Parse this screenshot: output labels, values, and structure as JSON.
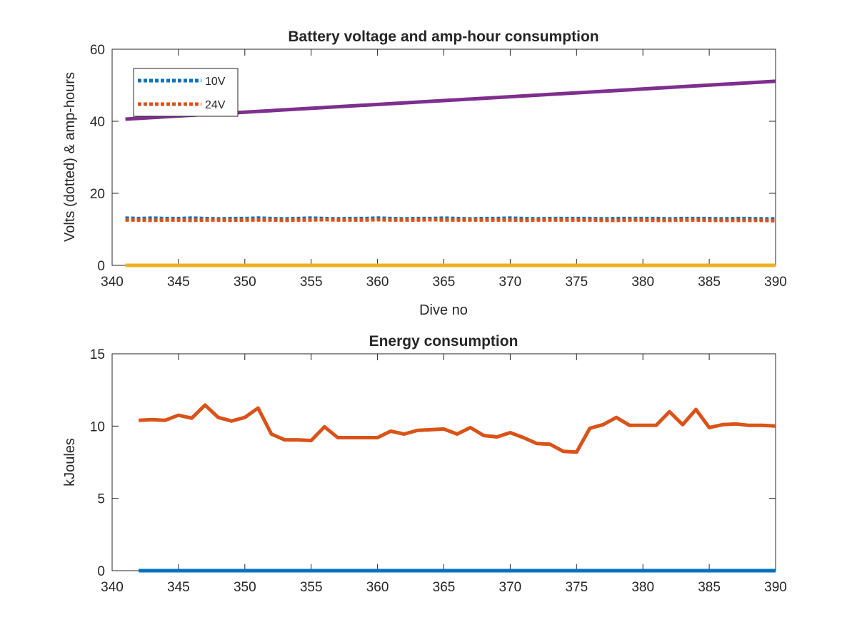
{
  "chart_data": [
    {
      "type": "line",
      "title": "Battery voltage and amp-hour consumption",
      "xlabel": "Dive no",
      "ylabel": "Volts (dotted) & amp-hours",
      "xlim": [
        340,
        390
      ],
      "ylim": [
        0,
        60
      ],
      "xticks": [
        "340",
        "345",
        "350",
        "355",
        "360",
        "365",
        "370",
        "375",
        "380",
        "385",
        "390"
      ],
      "yticks": [
        "0",
        "20",
        "40",
        "60"
      ],
      "grid": false,
      "legend_position": "top-left",
      "series": [
        {
          "name": "10V",
          "style": "dotted",
          "color": "#0072BD",
          "x": [
            341,
            342,
            343,
            344,
            345,
            346,
            347,
            348,
            349,
            350,
            351,
            352,
            353,
            354,
            355,
            356,
            357,
            358,
            359,
            360,
            361,
            362,
            363,
            364,
            365,
            366,
            367,
            368,
            369,
            370,
            371,
            372,
            373,
            374,
            375,
            376,
            377,
            378,
            379,
            380,
            381,
            382,
            383,
            384,
            385,
            386,
            387,
            388,
            389,
            390
          ],
          "values": [
            13.1,
            13.0,
            13.1,
            13.0,
            13.0,
            13.1,
            13.0,
            12.9,
            13.0,
            13.0,
            13.1,
            13.0,
            12.9,
            13.0,
            13.1,
            13.0,
            12.9,
            13.0,
            13.0,
            13.1,
            13.0,
            12.9,
            13.0,
            13.0,
            13.1,
            13.0,
            12.9,
            13.0,
            13.0,
            13.1,
            13.0,
            12.9,
            13.0,
            13.0,
            13.0,
            13.0,
            12.9,
            13.0,
            13.0,
            13.0,
            13.0,
            12.9,
            13.0,
            13.0,
            13.0,
            12.9,
            13.0,
            13.0,
            12.9,
            12.9
          ]
        },
        {
          "name": "24V",
          "style": "dotted",
          "color": "#D95319",
          "x": [
            341,
            342,
            343,
            344,
            345,
            346,
            347,
            348,
            349,
            350,
            351,
            352,
            353,
            354,
            355,
            356,
            357,
            358,
            359,
            360,
            361,
            362,
            363,
            364,
            365,
            366,
            367,
            368,
            369,
            370,
            371,
            372,
            373,
            374,
            375,
            376,
            377,
            378,
            379,
            380,
            381,
            382,
            383,
            384,
            385,
            386,
            387,
            388,
            389,
            390
          ],
          "values": [
            12.6,
            12.6,
            12.5,
            12.6,
            12.6,
            12.5,
            12.6,
            12.6,
            12.5,
            12.6,
            12.6,
            12.6,
            12.5,
            12.6,
            12.6,
            12.7,
            12.6,
            12.6,
            12.6,
            12.7,
            12.6,
            12.6,
            12.6,
            12.7,
            12.6,
            12.6,
            12.6,
            12.6,
            12.6,
            12.6,
            12.5,
            12.6,
            12.6,
            12.6,
            12.6,
            12.6,
            12.5,
            12.5,
            12.6,
            12.6,
            12.5,
            12.5,
            12.6,
            12.6,
            12.5,
            12.5,
            12.5,
            12.5,
            12.5,
            12.4
          ]
        },
        {
          "style": "solid",
          "color": "#EDB120",
          "x": [
            341,
            390
          ],
          "values": [
            0,
            0
          ]
        },
        {
          "style": "solid",
          "color": "#7E2F8E",
          "x": [
            341,
            390
          ],
          "values": [
            40.6,
            51.1
          ]
        }
      ]
    },
    {
      "type": "line",
      "title": "Energy consumption",
      "xlabel": "",
      "ylabel": "kJoules",
      "xlim": [
        340,
        390
      ],
      "ylim": [
        0,
        15
      ],
      "xticks": [
        "340",
        "345",
        "350",
        "355",
        "360",
        "365",
        "370",
        "375",
        "380",
        "385",
        "390"
      ],
      "yticks": [
        "0",
        "5",
        "10",
        "15"
      ],
      "grid": false,
      "series": [
        {
          "style": "solid",
          "color": "#0072BD",
          "x": [
            342,
            390
          ],
          "values": [
            0,
            0
          ]
        },
        {
          "style": "solid",
          "color": "#D95319",
          "x": [
            342,
            343,
            344,
            345,
            346,
            347,
            348,
            349,
            350,
            351,
            352,
            353,
            354,
            355,
            356,
            357,
            358,
            359,
            360,
            361,
            362,
            363,
            364,
            365,
            366,
            367,
            368,
            369,
            370,
            371,
            372,
            373,
            374,
            375,
            376,
            377,
            378,
            379,
            380,
            381,
            382,
            383,
            384,
            385,
            386,
            387,
            388,
            389,
            390
          ],
          "values": [
            10.4,
            10.45,
            10.4,
            10.75,
            10.55,
            11.45,
            10.6,
            10.35,
            10.6,
            11.25,
            9.45,
            9.05,
            9.05,
            9.0,
            9.95,
            9.2,
            9.2,
            9.2,
            9.2,
            9.65,
            9.45,
            9.7,
            9.75,
            9.8,
            9.45,
            9.9,
            9.35,
            9.25,
            9.55,
            9.2,
            8.8,
            8.75,
            8.25,
            8.2,
            9.85,
            10.1,
            10.6,
            10.05,
            10.05,
            10.05,
            11.0,
            10.1,
            11.15,
            9.9,
            10.1,
            10.15,
            10.05,
            10.05,
            10.0
          ]
        }
      ]
    }
  ]
}
